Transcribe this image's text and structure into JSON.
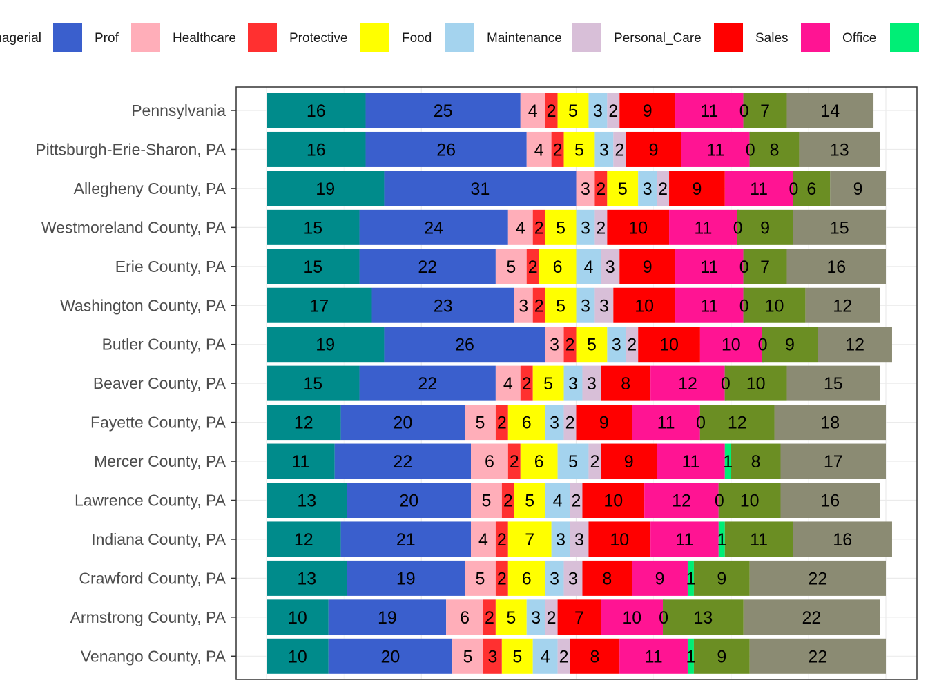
{
  "chart_data": {
    "type": "bar",
    "orientation": "horizontal",
    "stacked": true,
    "legend_position": "top",
    "grid": true,
    "xlim": [
      0,
      100
    ],
    "categories": [
      "Pennsylvania",
      "Pittsburgh-Erie-Sharon, PA",
      "Allegheny County, PA",
      "Westmoreland County, PA",
      "Erie County, PA",
      "Washington County, PA",
      "Butler County, PA",
      "Beaver County, PA",
      "Fayette County, PA",
      "Mercer County, PA",
      "Lawrence County, PA",
      "Indiana County, PA",
      "Crawford County, PA",
      "Armstrong County, PA",
      "Venango County, PA"
    ],
    "series": [
      {
        "key": "managerial",
        "legend": "Managerial",
        "color": "#008B8B",
        "values": [
          16,
          16,
          19,
          15,
          15,
          17,
          19,
          15,
          12,
          11,
          13,
          12,
          13,
          10,
          10
        ]
      },
      {
        "key": "prof",
        "legend": "Prof",
        "color": "#3A5FCD",
        "values": [
          25,
          26,
          31,
          24,
          22,
          23,
          26,
          22,
          20,
          22,
          20,
          21,
          19,
          19,
          20
        ]
      },
      {
        "key": "healthcare",
        "legend": "Healthcare",
        "color": "#FFAEB9",
        "values": [
          4,
          4,
          3,
          4,
          5,
          3,
          3,
          4,
          5,
          6,
          5,
          4,
          5,
          6,
          5
        ]
      },
      {
        "key": "protective",
        "legend": "Protective",
        "color": "#FF3030",
        "values": [
          2,
          2,
          2,
          2,
          2,
          2,
          2,
          2,
          2,
          2,
          2,
          2,
          2,
          2,
          3
        ]
      },
      {
        "key": "food",
        "legend": "Food",
        "color": "#FFFF00",
        "values": [
          5,
          5,
          5,
          5,
          6,
          5,
          5,
          5,
          6,
          6,
          5,
          7,
          6,
          5,
          5
        ]
      },
      {
        "key": "maintenance",
        "legend": "Maintenance",
        "color": "#A4D3EE",
        "values": [
          3,
          3,
          3,
          3,
          4,
          3,
          3,
          3,
          3,
          5,
          4,
          3,
          3,
          3,
          4
        ]
      },
      {
        "key": "personal_care",
        "legend": "Personal_Care",
        "color": "#D8BFD8",
        "values": [
          2,
          2,
          2,
          2,
          3,
          3,
          2,
          3,
          2,
          2,
          2,
          3,
          3,
          2,
          2
        ]
      },
      {
        "key": "sales",
        "legend": "Sales",
        "color": "#FF0000",
        "values": [
          9,
          9,
          9,
          10,
          9,
          10,
          10,
          8,
          9,
          9,
          10,
          10,
          8,
          7,
          8
        ]
      },
      {
        "key": "office",
        "legend": "Office",
        "color": "#FF1493",
        "values": [
          11,
          11,
          11,
          11,
          11,
          11,
          10,
          12,
          11,
          11,
          12,
          11,
          9,
          10,
          11
        ]
      },
      {
        "key": "farming",
        "legend": "",
        "color": "#00EE76",
        "values": [
          0,
          0,
          0,
          0,
          0,
          0,
          0,
          0,
          0,
          1,
          0,
          1,
          1,
          0,
          1
        ]
      },
      {
        "key": "construction",
        "legend": "",
        "color": "#6B8E23",
        "values": [
          7,
          8,
          6,
          9,
          7,
          10,
          9,
          10,
          12,
          8,
          10,
          11,
          9,
          13,
          9
        ]
      },
      {
        "key": "production",
        "legend": "",
        "color": "#8B8B73",
        "values": [
          14,
          13,
          9,
          15,
          16,
          12,
          12,
          15,
          18,
          17,
          16,
          16,
          22,
          22,
          22
        ]
      }
    ],
    "legend_visible": [
      "Managerial",
      "Prof",
      "Healthcare",
      "Protective",
      "Food",
      "Maintenance",
      "Personal_Care",
      "Sales",
      "Office"
    ]
  }
}
